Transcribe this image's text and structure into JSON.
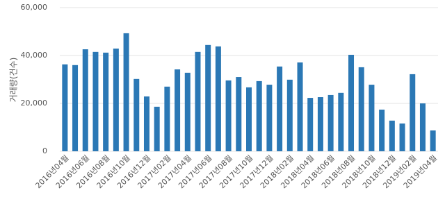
{
  "chart_data": {
    "type": "bar",
    "y_label": "거래량(건수)",
    "categories": [
      "2016년04월",
      null,
      "2016년06월",
      null,
      "2016년08월",
      null,
      "2016년10월",
      null,
      "2016년12월",
      null,
      "2017년02월",
      null,
      "2017년04월",
      null,
      "2017년06월",
      null,
      "2017년08월",
      null,
      "2017년10월",
      null,
      "2017년12월",
      null,
      "2018년02월",
      null,
      "2018년04월",
      null,
      "2018년06월",
      null,
      "2018년08월",
      null,
      "2018년10월",
      null,
      "2018년12월",
      null,
      "2019년02월",
      null,
      "2019년04월"
    ],
    "values": [
      36300,
      36000,
      42600,
      41500,
      41200,
      42900,
      49300,
      30200,
      22900,
      18600,
      27000,
      34200,
      32800,
      41500,
      44400,
      43800,
      29600,
      31000,
      26700,
      29300,
      27800,
      35400,
      29900,
      37100,
      22300,
      22600,
      23500,
      24400,
      40300,
      35100,
      27800,
      17400,
      12800,
      11600,
      32200,
      20000,
      8700
    ],
    "color": "#2b78b5",
    "ylim": [
      0,
      60000
    ],
    "yticks": [
      {
        "value": 0,
        "label": "0"
      },
      {
        "value": 20000,
        "label": "20,000"
      },
      {
        "value": 40000,
        "label": "40,000"
      },
      {
        "value": 60000,
        "label": "60,000"
      }
    ],
    "grid": true
  }
}
